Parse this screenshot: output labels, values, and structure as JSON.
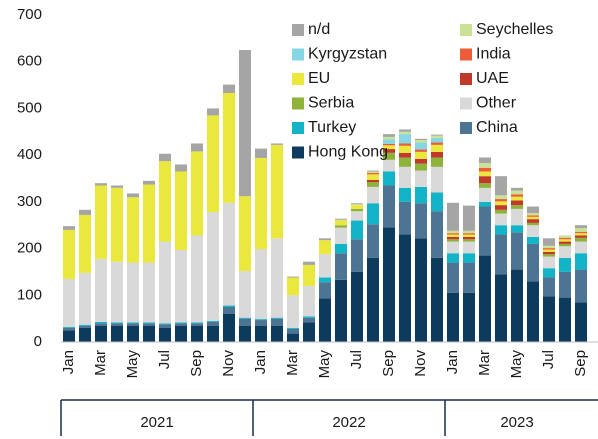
{
  "chart_data": {
    "type": "stacked_bar",
    "categories": [
      "Jan",
      null,
      "Mar",
      null,
      "May",
      null,
      "Jul",
      null,
      "Sep",
      null,
      "Nov",
      null,
      "Jan",
      null,
      "Mar",
      null,
      "May",
      null,
      "Jul",
      null,
      "Sep",
      null,
      "Nov",
      null,
      "Jan",
      null,
      "Mar",
      null,
      "May",
      null,
      "Jul",
      null,
      "Sep"
    ],
    "years": [
      "2021",
      "2022",
      "2023"
    ],
    "ylim": [
      0,
      700
    ],
    "yticks": [
      0,
      100,
      200,
      300,
      400,
      500,
      600,
      700
    ],
    "series": [
      {
        "name": "n/d",
        "color": "#a5a5a5",
        "values": [
          8,
          11,
          5,
          5,
          8,
          8,
          16,
          15,
          17,
          15,
          18,
          313,
          20,
          3,
          2,
          7,
          4,
          2,
          2,
          2,
          6,
          5,
          3,
          2,
          60,
          54,
          12,
          41,
          6,
          14,
          16,
          0,
          6
        ]
      },
      {
        "name": "Seychelles",
        "color": "#c9e296",
        "values": [
          0,
          0,
          0,
          0,
          0,
          0,
          0,
          0,
          0,
          0,
          0,
          0,
          0,
          0,
          0,
          0,
          0,
          2,
          2,
          3,
          5,
          5,
          5,
          5,
          5,
          5,
          10,
          8,
          8,
          5,
          5,
          5,
          8
        ]
      },
      {
        "name": "Kyrgyzstan",
        "color": "#86d6e3",
        "values": [
          0,
          0,
          0,
          0,
          0,
          0,
          0,
          0,
          0,
          0,
          0,
          0,
          0,
          0,
          0,
          0,
          0,
          0,
          0,
          0,
          10,
          20,
          15,
          10,
          0,
          0,
          0,
          0,
          0,
          0,
          0,
          0,
          0
        ]
      },
      {
        "name": "India",
        "color": "#ec5d3a",
        "values": [
          0,
          0,
          0,
          0,
          0,
          0,
          0,
          0,
          0,
          0,
          0,
          0,
          0,
          0,
          0,
          0,
          0,
          0,
          0,
          3,
          3,
          5,
          5,
          5,
          3,
          3,
          8,
          5,
          5,
          3,
          3,
          3,
          3
        ]
      },
      {
        "name": "EU",
        "color": "#ebe83d",
        "values": [
          105,
          124,
          157,
          158,
          140,
          167,
          172,
          168,
          180,
          207,
          235,
          160,
          195,
          200,
          38,
          45,
          30,
          10,
          8,
          12,
          8,
          15,
          15,
          15,
          5,
          5,
          10,
          8,
          8,
          5,
          5,
          5,
          5
        ]
      },
      {
        "name": "UAE",
        "color": "#c0392b",
        "values": [
          0,
          0,
          0,
          0,
          0,
          0,
          0,
          0,
          0,
          0,
          0,
          0,
          0,
          0,
          0,
          0,
          0,
          0,
          0,
          5,
          8,
          10,
          10,
          12,
          5,
          5,
          15,
          10,
          10,
          8,
          5,
          5,
          5
        ]
      },
      {
        "name": "Serbia",
        "color": "#8fb23b",
        "values": [
          0,
          0,
          0,
          0,
          0,
          0,
          0,
          0,
          0,
          0,
          0,
          0,
          0,
          0,
          0,
          0,
          0,
          5,
          5,
          10,
          15,
          20,
          15,
          20,
          5,
          5,
          10,
          8,
          8,
          5,
          5,
          5,
          8
        ]
      },
      {
        "name": "Other",
        "color": "#d9d9d9",
        "values": [
          103,
          111,
          135,
          130,
          128,
          128,
          175,
          155,
          186,
          233,
          220,
          100,
          150,
          170,
          70,
          65,
          50,
          35,
          20,
          35,
          25,
          45,
          35,
          55,
          25,
          25,
          30,
          25,
          35,
          25,
          25,
          25,
          25
        ]
      },
      {
        "name": "Turkey",
        "color": "#14b4c8",
        "values": [
          2,
          2,
          3,
          2,
          2,
          2,
          2,
          2,
          2,
          2,
          3,
          2,
          2,
          2,
          2,
          3,
          10,
          20,
          40,
          45,
          30,
          30,
          35,
          40,
          20,
          20,
          10,
          20,
          15,
          15,
          20,
          30,
          35
        ]
      },
      {
        "name": "China",
        "color": "#4d7493",
        "values": [
          5,
          5,
          5,
          5,
          5,
          5,
          8,
          5,
          5,
          8,
          15,
          15,
          12,
          15,
          10,
          10,
          35,
          57,
          70,
          72,
          90,
          70,
          75,
          100,
          65,
          65,
          105,
          85,
          80,
          80,
          40,
          55,
          70
        ]
      },
      {
        "name": "Hong Kong",
        "color": "#0d3b5e",
        "values": [
          25,
          30,
          35,
          35,
          35,
          35,
          30,
          35,
          35,
          35,
          60,
          35,
          35,
          35,
          18,
          42,
          93,
          133,
          150,
          180,
          245,
          230,
          222,
          180,
          105,
          105,
          185,
          145,
          155,
          130,
          98,
          95,
          85
        ]
      }
    ]
  }
}
